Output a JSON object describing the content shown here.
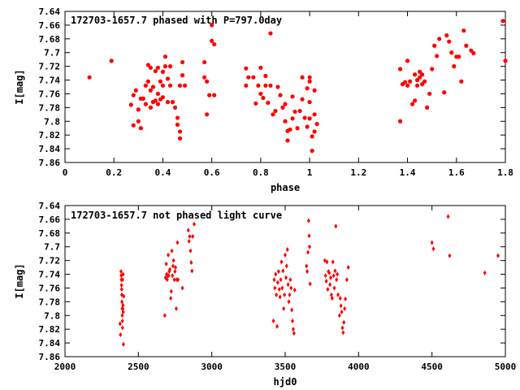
{
  "chart_data": [
    {
      "type": "scatter",
      "title": "172703-1657.7 phased with P=797.0day",
      "xlabel": "phase",
      "ylabel": "I[mag]",
      "xlim": [
        0,
        1.8
      ],
      "ylim": [
        7.86,
        7.64
      ],
      "y_reversed": true,
      "grid": false,
      "marker": "filled-circle",
      "color": "#ff0000",
      "xticks": [
        "0",
        "0.2",
        "0.4",
        "0.6",
        "0.8",
        "1",
        "1.2",
        "1.4",
        "1.6",
        "1.8"
      ],
      "yticks": [
        "7.64",
        "7.66",
        "7.68",
        "7.7",
        "7.72",
        "7.74",
        "7.76",
        "7.78",
        "7.8",
        "7.82",
        "7.84",
        "7.86"
      ],
      "points": [
        [
          0.1,
          7.736
        ],
        [
          0.19,
          7.712
        ],
        [
          0.27,
          7.776
        ],
        [
          0.28,
          7.806
        ],
        [
          0.28,
          7.762
        ],
        [
          0.29,
          7.755
        ],
        [
          0.3,
          7.8
        ],
        [
          0.3,
          7.783
        ],
        [
          0.31,
          7.81
        ],
        [
          0.31,
          7.767
        ],
        [
          0.32,
          7.767
        ],
        [
          0.33,
          7.748
        ],
        [
          0.33,
          7.775
        ],
        [
          0.34,
          7.742
        ],
        [
          0.34,
          7.718
        ],
        [
          0.35,
          7.78
        ],
        [
          0.35,
          7.755
        ],
        [
          0.35,
          7.722
        ],
        [
          0.36,
          7.772
        ],
        [
          0.36,
          7.75
        ],
        [
          0.37,
          7.727
        ],
        [
          0.37,
          7.77
        ],
        [
          0.38,
          7.76
        ],
        [
          0.38,
          7.722
        ],
        [
          0.38,
          7.775
        ],
        [
          0.39,
          7.742
        ],
        [
          0.39,
          7.768
        ],
        [
          0.4,
          7.728
        ],
        [
          0.4,
          7.748
        ],
        [
          0.4,
          7.765
        ],
        [
          0.41,
          7.72
        ],
        [
          0.41,
          7.706
        ],
        [
          0.42,
          7.738
        ],
        [
          0.42,
          7.772
        ],
        [
          0.43,
          7.748
        ],
        [
          0.43,
          7.72
        ],
        [
          0.44,
          7.772
        ],
        [
          0.45,
          7.78
        ],
        [
          0.46,
          7.795
        ],
        [
          0.46,
          7.805
        ],
        [
          0.47,
          7.815
        ],
        [
          0.47,
          7.825
        ],
        [
          0.47,
          7.748
        ],
        [
          0.48,
          7.714
        ],
        [
          0.48,
          7.733
        ],
        [
          0.49,
          7.748
        ],
        [
          0.57,
          7.714
        ],
        [
          0.57,
          7.736
        ],
        [
          0.58,
          7.79
        ],
        [
          0.58,
          7.742
        ],
        [
          0.59,
          7.762
        ],
        [
          0.6,
          7.683
        ],
        [
          0.6,
          7.66
        ],
        [
          0.61,
          7.688
        ],
        [
          0.61,
          7.762
        ],
        [
          0.74,
          7.748
        ],
        [
          0.74,
          7.723
        ],
        [
          0.75,
          7.736
        ],
        [
          0.77,
          7.736
        ],
        [
          0.78,
          7.774
        ],
        [
          0.79,
          7.748
        ],
        [
          0.8,
          7.722
        ],
        [
          0.8,
          7.76
        ],
        [
          0.81,
          7.766
        ],
        [
          0.82,
          7.734
        ],
        [
          0.82,
          7.748
        ],
        [
          0.83,
          7.773
        ],
        [
          0.84,
          7.748
        ],
        [
          0.84,
          7.672
        ],
        [
          0.85,
          7.79
        ],
        [
          0.86,
          7.785
        ],
        [
          0.87,
          7.75
        ],
        [
          0.88,
          7.762
        ],
        [
          0.89,
          7.78
        ],
        [
          0.9,
          7.8
        ],
        [
          0.9,
          7.775
        ],
        [
          0.91,
          7.814
        ],
        [
          0.91,
          7.828
        ],
        [
          0.92,
          7.812
        ],
        [
          0.93,
          7.764
        ],
        [
          0.93,
          7.796
        ],
        [
          0.94,
          7.786
        ],
        [
          0.95,
          7.81
        ],
        [
          0.96,
          7.785
        ],
        [
          0.97,
          7.736
        ],
        [
          0.97,
          7.768
        ],
        [
          0.98,
          7.795
        ],
        [
          0.99,
          7.808
        ],
        [
          0.99,
          7.752
        ],
        [
          1.0,
          7.736
        ],
        [
          1.0,
          7.742
        ],
        [
          1.0,
          7.796
        ],
        [
          1.0,
          7.772
        ],
        [
          1.01,
          7.822
        ],
        [
          1.01,
          7.843
        ],
        [
          1.02,
          7.755
        ],
        [
          1.02,
          7.79
        ],
        [
          1.02,
          7.815
        ],
        [
          1.03,
          7.804
        ],
        [
          1.37,
          7.8
        ],
        [
          1.37,
          7.724
        ],
        [
          1.38,
          7.746
        ],
        [
          1.39,
          7.743
        ],
        [
          1.4,
          7.748
        ],
        [
          1.4,
          7.712
        ],
        [
          1.41,
          7.742
        ],
        [
          1.42,
          7.775
        ],
        [
          1.43,
          7.77
        ],
        [
          1.43,
          7.732
        ],
        [
          1.44,
          7.748
        ],
        [
          1.44,
          7.74
        ],
        [
          1.45,
          7.736
        ],
        [
          1.45,
          7.728
        ],
        [
          1.46,
          7.732
        ],
        [
          1.46,
          7.746
        ],
        [
          1.47,
          7.742
        ],
        [
          1.48,
          7.78
        ],
        [
          1.49,
          7.76
        ],
        [
          1.5,
          7.724
        ],
        [
          1.51,
          7.69
        ],
        [
          1.52,
          7.705
        ],
        [
          1.53,
          7.68
        ],
        [
          1.55,
          7.758
        ],
        [
          1.56,
          7.675
        ],
        [
          1.57,
          7.684
        ],
        [
          1.58,
          7.7
        ],
        [
          1.59,
          7.72
        ],
        [
          1.6,
          7.706
        ],
        [
          1.61,
          7.706
        ],
        [
          1.62,
          7.742
        ],
        [
          1.63,
          7.668
        ],
        [
          1.64,
          7.69
        ],
        [
          1.66,
          7.697
        ],
        [
          1.67,
          7.701
        ],
        [
          1.79,
          7.654
        ],
        [
          1.8,
          7.712
        ]
      ]
    },
    {
      "type": "scatter",
      "title": "172703-1657.7 not phased light curve",
      "xlabel": "hjd0",
      "ylabel": "I[mag]",
      "xlim": [
        2000,
        5000
      ],
      "ylim": [
        7.86,
        7.64
      ],
      "y_reversed": true,
      "grid": false,
      "marker": "small-diamond",
      "color": "#ff0000",
      "xticks": [
        "2000",
        "2500",
        "3000",
        "3500",
        "4000",
        "4500",
        "5000"
      ],
      "yticks": [
        "7.64",
        "7.66",
        "7.68",
        "7.7",
        "7.72",
        "7.74",
        "7.76",
        "7.78",
        "7.8",
        "7.82",
        "7.84",
        "7.86"
      ],
      "points": [
        [
          2375,
          7.812
        ],
        [
          2378,
          7.828
        ],
        [
          2382,
          7.736
        ],
        [
          2383,
          7.742
        ],
        [
          2384,
          7.748
        ],
        [
          2385,
          7.756
        ],
        [
          2386,
          7.762
        ],
        [
          2387,
          7.77
        ],
        [
          2388,
          7.78
        ],
        [
          2389,
          7.79
        ],
        [
          2390,
          7.8
        ],
        [
          2391,
          7.808
        ],
        [
          2392,
          7.818
        ],
        [
          2393,
          7.748
        ],
        [
          2394,
          7.79
        ],
        [
          2395,
          7.785
        ],
        [
          2396,
          7.74
        ],
        [
          2397,
          7.795
        ],
        [
          2398,
          7.842
        ],
        [
          2400,
          7.772
        ],
        [
          2680,
          7.8
        ],
        [
          2685,
          7.745
        ],
        [
          2690,
          7.725
        ],
        [
          2693,
          7.74
        ],
        [
          2696,
          7.748
        ],
        [
          2700,
          7.742
        ],
        [
          2703,
          7.712
        ],
        [
          2706,
          7.742
        ],
        [
          2710,
          7.736
        ],
        [
          2715,
          7.733
        ],
        [
          2720,
          7.775
        ],
        [
          2724,
          7.765
        ],
        [
          2728,
          7.706
        ],
        [
          2732,
          7.742
        ],
        [
          2736,
          7.728
        ],
        [
          2740,
          7.72
        ],
        [
          2745,
          7.748
        ],
        [
          2749,
          7.736
        ],
        [
          2753,
          7.73
        ],
        [
          2758,
          7.79
        ],
        [
          2762,
          7.748
        ],
        [
          2766,
          7.694
        ],
        [
          2770,
          7.748
        ],
        [
          2800,
          7.76
        ],
        [
          2840,
          7.676
        ],
        [
          2845,
          7.692
        ],
        [
          2850,
          7.685
        ],
        [
          2855,
          7.706
        ],
        [
          2860,
          7.723
        ],
        [
          2865,
          7.735
        ],
        [
          2870,
          7.685
        ],
        [
          2880,
          7.667
        ],
        [
          3420,
          7.808
        ],
        [
          3425,
          7.748
        ],
        [
          3430,
          7.76
        ],
        [
          3435,
          7.74
        ],
        [
          3440,
          7.77
        ],
        [
          3445,
          7.816
        ],
        [
          3450,
          7.752
        ],
        [
          3455,
          7.736
        ],
        [
          3460,
          7.762
        ],
        [
          3465,
          7.773
        ],
        [
          3470,
          7.748
        ],
        [
          3475,
          7.722
        ],
        [
          3480,
          7.76
        ],
        [
          3485,
          7.735
        ],
        [
          3490,
          7.79
        ],
        [
          3495,
          7.77
        ],
        [
          3500,
          7.712
        ],
        [
          3505,
          7.745
        ],
        [
          3510,
          7.728
        ],
        [
          3515,
          7.704
        ],
        [
          3520,
          7.755
        ],
        [
          3525,
          7.78
        ],
        [
          3530,
          7.77
        ],
        [
          3535,
          7.748
        ],
        [
          3540,
          7.76
        ],
        [
          3545,
          7.792
        ],
        [
          3550,
          7.808
        ],
        [
          3555,
          7.82
        ],
        [
          3560,
          7.826
        ],
        [
          3565,
          7.763
        ],
        [
          3645,
          7.728
        ],
        [
          3650,
          7.736
        ],
        [
          3655,
          7.708
        ],
        [
          3660,
          7.662
        ],
        [
          3663,
          7.684
        ],
        [
          3666,
          7.7
        ],
        [
          3670,
          7.754
        ],
        [
          3770,
          7.72
        ],
        [
          3775,
          7.742
        ],
        [
          3780,
          7.75
        ],
        [
          3785,
          7.722
        ],
        [
          3790,
          7.762
        ],
        [
          3795,
          7.736
        ],
        [
          3800,
          7.738
        ],
        [
          3805,
          7.755
        ],
        [
          3810,
          7.745
        ],
        [
          3815,
          7.77
        ],
        [
          3820,
          7.775
        ],
        [
          3825,
          7.722
        ],
        [
          3830,
          7.742
        ],
        [
          3835,
          7.76
        ],
        [
          3840,
          7.735
        ],
        [
          3845,
          7.67
        ],
        [
          3850,
          7.748
        ],
        [
          3855,
          7.74
        ],
        [
          3860,
          7.77
        ],
        [
          3870,
          7.8
        ],
        [
          3875,
          7.775
        ],
        [
          3880,
          7.786
        ],
        [
          3885,
          7.795
        ],
        [
          3890,
          7.818
        ],
        [
          3895,
          7.825
        ],
        [
          3900,
          7.81
        ],
        [
          3905,
          7.79
        ],
        [
          3910,
          7.776
        ],
        [
          3920,
          7.748
        ],
        [
          3930,
          7.73
        ],
        [
          4500,
          7.694
        ],
        [
          4510,
          7.703
        ],
        [
          4610,
          7.656
        ],
        [
          4620,
          7.713
        ],
        [
          4860,
          7.738
        ],
        [
          4950,
          7.713
        ]
      ]
    }
  ]
}
